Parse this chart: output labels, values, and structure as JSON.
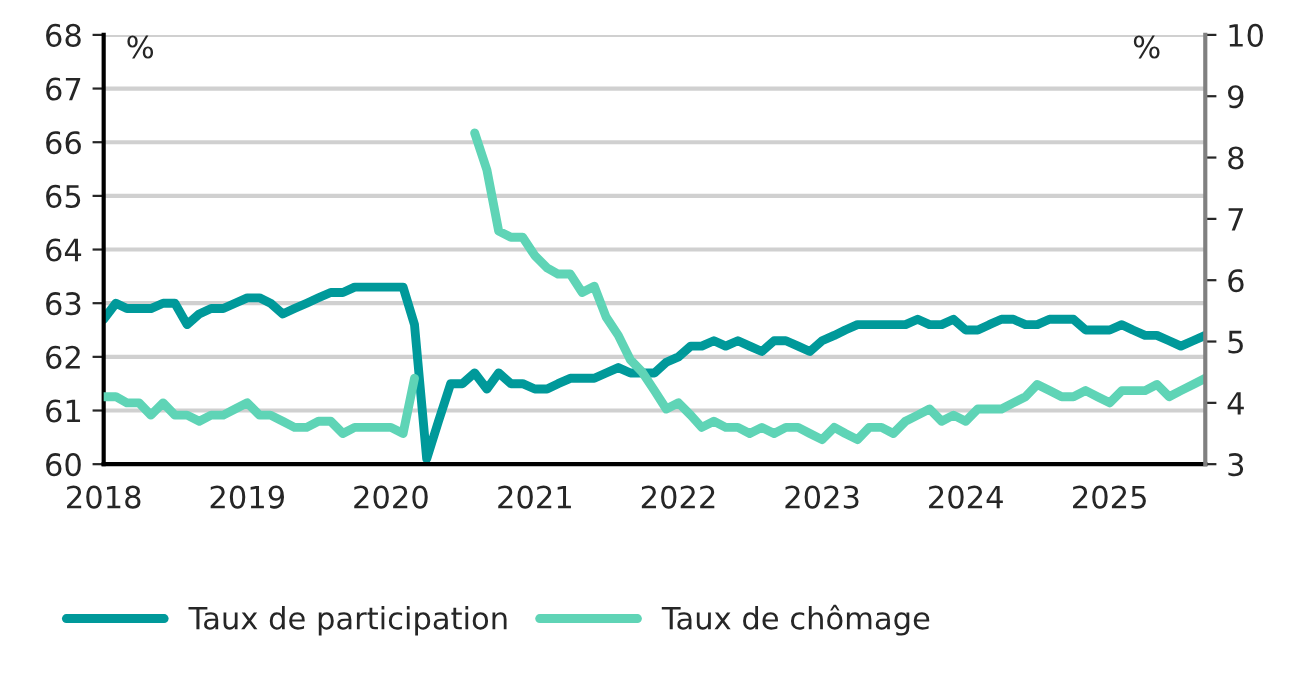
{
  "chart_data": {
    "type": "line",
    "ylabel": "%",
    "y2label": "%",
    "x": [
      "2018-01",
      "2018-02",
      "2018-03",
      "2018-04",
      "2018-05",
      "2018-06",
      "2018-07",
      "2018-08",
      "2018-09",
      "2018-10",
      "2018-11",
      "2018-12",
      "2019-01",
      "2019-02",
      "2019-03",
      "2019-04",
      "2019-05",
      "2019-06",
      "2019-07",
      "2019-08",
      "2019-09",
      "2019-10",
      "2019-11",
      "2019-12",
      "2020-01",
      "2020-02",
      "2020-03",
      "2020-04",
      "2020-05",
      "2020-06",
      "2020-07",
      "2020-08",
      "2020-09",
      "2020-10",
      "2020-11",
      "2020-12",
      "2021-01",
      "2021-02",
      "2021-03",
      "2021-04",
      "2021-05",
      "2021-06",
      "2021-07",
      "2021-08",
      "2021-09",
      "2021-10",
      "2021-11",
      "2021-12",
      "2022-01",
      "2022-02",
      "2022-03",
      "2022-04",
      "2022-05",
      "2022-06",
      "2022-07",
      "2022-08",
      "2022-09",
      "2022-10",
      "2022-11",
      "2022-12",
      "2023-01",
      "2023-02",
      "2023-03",
      "2023-04",
      "2023-05",
      "2023-06",
      "2023-07",
      "2023-08",
      "2023-09",
      "2023-10",
      "2023-11",
      "2023-12",
      "2024-01",
      "2024-02",
      "2024-03",
      "2024-04",
      "2024-05",
      "2024-06",
      "2024-07",
      "2024-08",
      "2024-09",
      "2024-10",
      "2024-11",
      "2024-12",
      "2025-01",
      "2025-02",
      "2025-03",
      "2025-04",
      "2025-05",
      "2025-06",
      "2025-07",
      "2025-08",
      "2025-09"
    ],
    "series": [
      {
        "name": "Taux de participation",
        "color": "#00999a",
        "values": [
          62.7,
          63.0,
          62.9,
          62.9,
          62.9,
          63.0,
          63.0,
          62.6,
          62.8,
          62.9,
          62.9,
          63.0,
          63.1,
          63.1,
          63.0,
          62.8,
          62.9,
          63.0,
          63.1,
          63.2,
          63.2,
          63.3,
          63.3,
          63.3,
          63.3,
          63.3,
          62.6,
          60.1,
          60.8,
          61.5,
          61.5,
          61.7,
          61.4,
          61.7,
          61.5,
          61.5,
          61.4,
          61.4,
          61.5,
          61.6,
          61.6,
          61.6,
          61.7,
          61.8,
          61.7,
          61.7,
          61.7,
          61.9,
          62.0,
          62.2,
          62.2,
          62.3,
          62.2,
          62.3,
          62.2,
          62.1,
          62.3,
          62.3,
          62.2,
          62.1,
          62.3,
          62.4,
          62.5,
          62.6,
          62.6,
          62.6,
          62.6,
          62.6,
          62.7,
          62.6,
          62.6,
          62.7,
          62.5,
          62.5,
          62.6,
          62.7,
          62.7,
          62.6,
          62.6,
          62.7,
          62.7,
          62.7,
          62.5,
          62.5,
          62.5,
          62.6,
          62.5,
          62.4,
          62.4,
          62.3,
          62.2,
          62.3,
          62.4
        ]
      },
      {
        "name": "Taux de chômage",
        "color": "#5fd4b6",
        "axis": "y2",
        "values": [
          4.1,
          4.1,
          4.0,
          4.0,
          3.8,
          4.0,
          3.8,
          3.8,
          3.7,
          3.8,
          3.8,
          3.9,
          4.0,
          3.8,
          3.8,
          3.7,
          3.6,
          3.6,
          3.7,
          3.7,
          3.5,
          3.6,
          3.6,
          3.6,
          3.6,
          3.5,
          4.4,
          null,
          null,
          null,
          null,
          8.4,
          7.8,
          6.8,
          6.7,
          6.7,
          6.4,
          6.2,
          6.1,
          6.1,
          5.8,
          5.9,
          5.4,
          5.1,
          4.7,
          4.5,
          4.2,
          3.9,
          4.0,
          3.8,
          3.6,
          3.7,
          3.6,
          3.6,
          3.5,
          3.6,
          3.5,
          3.6,
          3.6,
          3.5,
          3.4,
          3.6,
          3.5,
          3.4,
          3.6,
          3.6,
          3.5,
          3.7,
          3.8,
          3.9,
          3.7,
          3.8,
          3.7,
          3.9,
          3.9,
          3.9,
          4.0,
          4.1,
          4.3,
          4.2,
          4.1,
          4.1,
          4.2,
          4.1,
          4.0,
          4.2,
          4.2,
          4.2,
          4.3,
          4.1,
          4.2,
          4.3,
          4.4
        ]
      }
    ],
    "xlim": [
      "2018-01",
      "2025-09"
    ],
    "xticks": [
      "2018",
      "2019",
      "2020",
      "2021",
      "2022",
      "2023",
      "2024",
      "2025"
    ],
    "ylim": [
      60,
      68
    ],
    "yticks": [
      60,
      61,
      62,
      63,
      64,
      65,
      66,
      67,
      68
    ],
    "y2lim": [
      3,
      10
    ],
    "y2ticks": [
      3,
      4,
      5,
      6,
      7,
      8,
      9,
      10
    ],
    "grid": "y",
    "legend": "bottom",
    "line_style": "solid",
    "marker": "none"
  }
}
